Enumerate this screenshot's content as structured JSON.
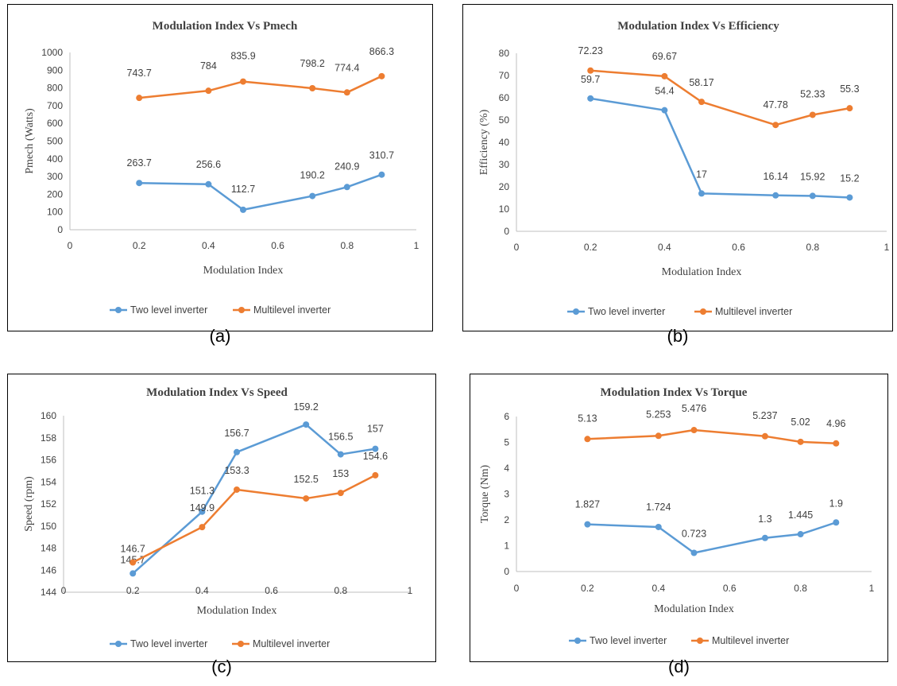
{
  "chart_data": [
    {
      "type": "line",
      "panel_label": "(a)",
      "title": "Modulation Index Vs Pmech",
      "xlabel": "Modulation Index",
      "ylabel": "Pmech (Watts)",
      "xlim": [
        0,
        1
      ],
      "ylim": [
        0,
        1000
      ],
      "x_ticks": [
        0,
        0.2,
        0.4,
        0.6,
        0.8,
        1
      ],
      "y_ticks": [
        0,
        100,
        200,
        300,
        400,
        500,
        600,
        700,
        800,
        900,
        1000
      ],
      "x": [
        0.2,
        0.4,
        0.5,
        0.7,
        0.8,
        0.9
      ],
      "grid": false,
      "legend_position": "bottom",
      "series": [
        {
          "name": "Two level inverter",
          "color": "#5b9bd5",
          "values": [
            263.7,
            256.6,
            112.7,
            190.2,
            240.9,
            310.7
          ],
          "labels": [
            "263.7",
            "256.6",
            "112.7",
            "190.2",
            "240.9",
            "310.7"
          ]
        },
        {
          "name": "Multilevel inverter",
          "color": "#ed7d31",
          "values": [
            743.7,
            784,
            835.9,
            798.2,
            774.4,
            866.3
          ],
          "labels": [
            "743.7",
            "784",
            "835.9",
            "798.2",
            "774.4",
            "866.3"
          ]
        }
      ]
    },
    {
      "type": "line",
      "panel_label": "(b)",
      "title": "Modulation Index Vs Efficiency",
      "xlabel": "Modulation Index",
      "ylabel": "Efficiency  (%)",
      "xlim": [
        0,
        1
      ],
      "ylim": [
        0,
        80
      ],
      "x_ticks": [
        0,
        0.2,
        0.4,
        0.6,
        0.8,
        1
      ],
      "y_ticks": [
        0,
        10,
        20,
        30,
        40,
        50,
        60,
        70,
        80
      ],
      "x": [
        0.2,
        0.4,
        0.5,
        0.7,
        0.8,
        0.9
      ],
      "grid": false,
      "legend_position": "bottom",
      "series": [
        {
          "name": "Two level inverter",
          "color": "#5b9bd5",
          "values": [
            59.7,
            54.4,
            17,
            16.14,
            15.92,
            15.2
          ],
          "labels": [
            "59.7",
            "54.4",
            "17",
            "16.14",
            "15.92",
            "15.2"
          ]
        },
        {
          "name": "Multilevel inverter",
          "color": "#ed7d31",
          "values": [
            72.23,
            69.67,
            58.17,
            47.78,
            52.33,
            55.3
          ],
          "labels": [
            "72.23",
            "69.67",
            "58.17",
            "47.78",
            "52.33",
            "55.3"
          ]
        }
      ]
    },
    {
      "type": "line",
      "panel_label": "(c)",
      "title": "Modulation Index Vs Speed",
      "xlabel": "Modulation Index",
      "ylabel": "Speed (rpm)",
      "xlim": [
        0,
        1
      ],
      "ylim": [
        144,
        160
      ],
      "x_ticks": [
        0,
        0.2,
        0.4,
        0.6,
        0.8,
        1
      ],
      "y_ticks": [
        144,
        146,
        148,
        150,
        152,
        154,
        156,
        158,
        160
      ],
      "x": [
        0.2,
        0.4,
        0.5,
        0.7,
        0.8,
        0.9
      ],
      "grid": false,
      "legend_position": "bottom",
      "series": [
        {
          "name": "Two level inverter",
          "color": "#5b9bd5",
          "values": [
            145.7,
            151.3,
            156.7,
            159.2,
            156.5,
            157
          ],
          "labels": [
            "145.7",
            "151.3",
            "156.7",
            "159.2",
            "156.5",
            "157"
          ]
        },
        {
          "name": "Multilevel inverter",
          "color": "#ed7d31",
          "values": [
            146.7,
            149.9,
            153.3,
            152.5,
            153,
            154.6
          ],
          "labels": [
            "146.7",
            "149.9",
            "153.3",
            "152.5",
            "153",
            "154.6"
          ]
        }
      ]
    },
    {
      "type": "line",
      "panel_label": "(d)",
      "title": "Modulation Index Vs Torque",
      "xlabel": "Modulation Index",
      "ylabel": "Torque (Nm)",
      "xlim": [
        0,
        1
      ],
      "ylim": [
        0,
        6
      ],
      "x_ticks": [
        0,
        0.2,
        0.4,
        0.6,
        0.8,
        1
      ],
      "y_ticks": [
        0,
        1,
        2,
        3,
        4,
        5,
        6
      ],
      "x": [
        0.2,
        0.4,
        0.5,
        0.7,
        0.8,
        0.9
      ],
      "grid": false,
      "legend_position": "bottom",
      "series": [
        {
          "name": "Two level inverter",
          "color": "#5b9bd5",
          "values": [
            1.827,
            1.724,
            0.723,
            1.3,
            1.445,
            1.9
          ],
          "labels": [
            "1.827",
            "1.724",
            "0.723",
            "1.3",
            "1.445",
            "1.9"
          ]
        },
        {
          "name": "Multilevel inverter",
          "color": "#ed7d31",
          "values": [
            5.13,
            5.253,
            5.476,
            5.237,
            5.02,
            4.96
          ],
          "labels": [
            "5.13",
            "5.253",
            "5.476",
            "5.237",
            "5.02",
            "4.96"
          ]
        }
      ]
    }
  ]
}
